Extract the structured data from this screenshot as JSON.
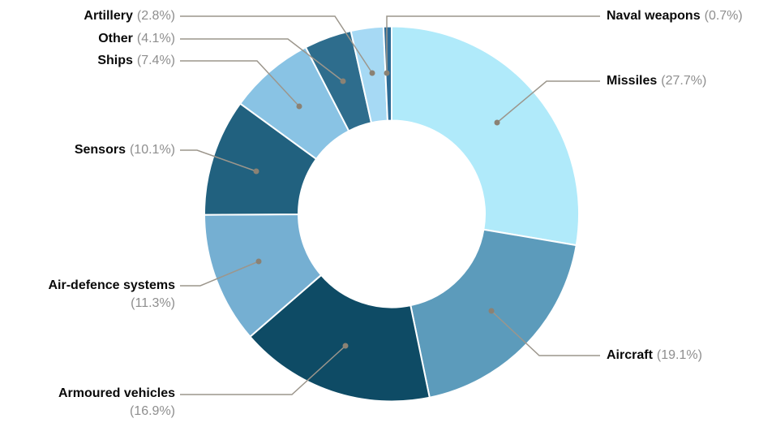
{
  "chart_data": {
    "type": "pie",
    "subtype": "donut",
    "title": "",
    "direction": "clockwise",
    "start_position": "12 o'clock",
    "inner_radius_ratio": 0.5,
    "legend_position": "callout-labels",
    "unit": "%",
    "total": 100.1,
    "segments": [
      {
        "label": "Missiles",
        "value": 27.7,
        "display": "(27.7%)",
        "color": "#B0EAFA"
      },
      {
        "label": "Aircraft",
        "value": 19.1,
        "display": "(19.1%)",
        "color": "#5C9BBB"
      },
      {
        "label": "Armoured vehicles",
        "value": 16.9,
        "display": "(16.9%)",
        "color": "#0E4B65"
      },
      {
        "label": "Air-defence systems",
        "value": 11.3,
        "display": "(11.3%)",
        "color": "#75AFD2"
      },
      {
        "label": "Sensors",
        "value": 10.1,
        "display": "(10.1%)",
        "color": "#21617F"
      },
      {
        "label": "Ships",
        "value": 7.4,
        "display": "(7.4%)",
        "color": "#89C3E4"
      },
      {
        "label": "Other",
        "value": 4.1,
        "display": "(4.1%)",
        "color": "#2E6D8D"
      },
      {
        "label": "Artillery",
        "value": 2.8,
        "display": "(2.8%)",
        "color": "#A6D9F4"
      },
      {
        "label": "Naval weapons",
        "value": 0.7,
        "display": "(0.7%)",
        "color": "#2D6B95"
      }
    ],
    "colors": {
      "label_text": "#0a0a0a",
      "percent_text": "#8e8e8e",
      "leader_line": "#9c968c",
      "leader_dot": "#8b8274",
      "segment_gap": "#ffffff",
      "background": "#ffffff"
    }
  }
}
